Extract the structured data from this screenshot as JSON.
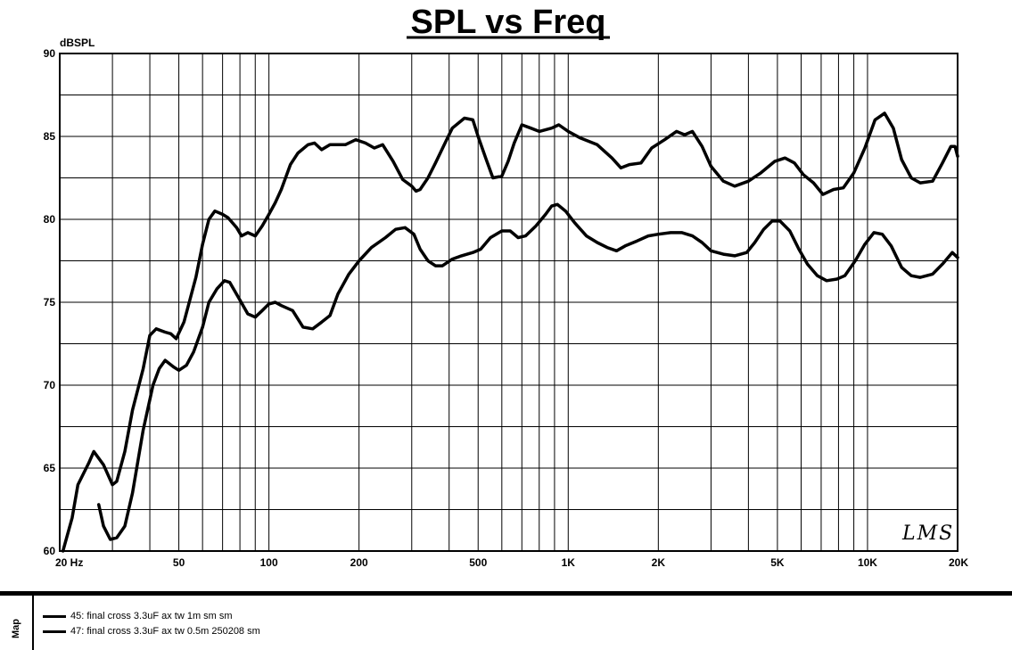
{
  "chart_data": {
    "type": "line",
    "title": "SPL vs Freq",
    "ylabel": "dBSPL",
    "xscale": "log",
    "xlim": [
      20,
      20000
    ],
    "ylim": [
      60,
      90
    ],
    "grid": true,
    "x_tick_labels": [
      {
        "x": 20,
        "label": "20  Hz"
      },
      {
        "x": 50,
        "label": "50"
      },
      {
        "x": 100,
        "label": "100"
      },
      {
        "x": 200,
        "label": "200"
      },
      {
        "x": 500,
        "label": "500"
      },
      {
        "x": 1000,
        "label": "1K"
      },
      {
        "x": 2000,
        "label": "2K"
      },
      {
        "x": 5000,
        "label": "5K"
      },
      {
        "x": 10000,
        "label": "10K"
      },
      {
        "x": 20000,
        "label": "20K"
      }
    ],
    "y_ticks": [
      60,
      65,
      70,
      75,
      80,
      85,
      90
    ],
    "watermark": "LMS",
    "series": [
      {
        "name": "45: final cross 3.3uF ax tw 1m sm sm",
        "color": "#000000",
        "points": [
          [
            20.5,
            60
          ],
          [
            22,
            62
          ],
          [
            23,
            64
          ],
          [
            25,
            65.3
          ],
          [
            26,
            66
          ],
          [
            28,
            65.2
          ],
          [
            30,
            64
          ],
          [
            31,
            64.2
          ],
          [
            33,
            66
          ],
          [
            35,
            68.5
          ],
          [
            38,
            71
          ],
          [
            40,
            73
          ],
          [
            42,
            73.4
          ],
          [
            45,
            73.2
          ],
          [
            47,
            73.1
          ],
          [
            49,
            72.8
          ],
          [
            52,
            73.8
          ],
          [
            57,
            76.5
          ],
          [
            60,
            78.5
          ],
          [
            63,
            80
          ],
          [
            66,
            80.5
          ],
          [
            70,
            80.3
          ],
          [
            73,
            80.1
          ],
          [
            78,
            79.5
          ],
          [
            81,
            79
          ],
          [
            85,
            79.2
          ],
          [
            90,
            79
          ],
          [
            95,
            79.6
          ],
          [
            100,
            80.3
          ],
          [
            105,
            81
          ],
          [
            110,
            81.8
          ],
          [
            118,
            83.3
          ],
          [
            125,
            84
          ],
          [
            135,
            84.5
          ],
          [
            142,
            84.6
          ],
          [
            150,
            84.2
          ],
          [
            160,
            84.5
          ],
          [
            180,
            84.5
          ],
          [
            195,
            84.8
          ],
          [
            210,
            84.6
          ],
          [
            225,
            84.3
          ],
          [
            240,
            84.5
          ],
          [
            260,
            83.5
          ],
          [
            280,
            82.4
          ],
          [
            300,
            82
          ],
          [
            310,
            81.7
          ],
          [
            320,
            81.8
          ],
          [
            340,
            82.5
          ],
          [
            360,
            83.4
          ],
          [
            390,
            84.7
          ],
          [
            410,
            85.5
          ],
          [
            450,
            86.1
          ],
          [
            480,
            86
          ],
          [
            500,
            85
          ],
          [
            530,
            83.7
          ],
          [
            560,
            82.5
          ],
          [
            600,
            82.6
          ],
          [
            630,
            83.5
          ],
          [
            660,
            84.6
          ],
          [
            700,
            85.7
          ],
          [
            750,
            85.5
          ],
          [
            800,
            85.3
          ],
          [
            880,
            85.5
          ],
          [
            930,
            85.7
          ],
          [
            1000,
            85.3
          ],
          [
            1100,
            84.9
          ],
          [
            1250,
            84.5
          ],
          [
            1400,
            83.7
          ],
          [
            1500,
            83.1
          ],
          [
            1600,
            83.3
          ],
          [
            1750,
            83.4
          ],
          [
            1900,
            84.3
          ],
          [
            2100,
            84.8
          ],
          [
            2300,
            85.3
          ],
          [
            2450,
            85.1
          ],
          [
            2600,
            85.3
          ],
          [
            2800,
            84.4
          ],
          [
            3000,
            83.2
          ],
          [
            3300,
            82.3
          ],
          [
            3600,
            82
          ],
          [
            4000,
            82.3
          ],
          [
            4400,
            82.8
          ],
          [
            4900,
            83.5
          ],
          [
            5300,
            83.7
          ],
          [
            5700,
            83.4
          ],
          [
            6100,
            82.7
          ],
          [
            6600,
            82.2
          ],
          [
            7100,
            81.5
          ],
          [
            7700,
            81.8
          ],
          [
            8300,
            81.9
          ],
          [
            9000,
            82.8
          ],
          [
            9800,
            84.3
          ],
          [
            10600,
            86
          ],
          [
            11400,
            86.4
          ],
          [
            12200,
            85.5
          ],
          [
            13000,
            83.6
          ],
          [
            14000,
            82.5
          ],
          [
            15000,
            82.2
          ],
          [
            16500,
            82.3
          ],
          [
            17800,
            83.4
          ],
          [
            19000,
            84.4
          ],
          [
            19600,
            84.4
          ],
          [
            20000,
            83.8
          ]
        ]
      },
      {
        "name": "47: final cross 3.3uF ax tw 0.5m 250208 sm",
        "color": "#000000",
        "points": [
          [
            27,
            62.8
          ],
          [
            28,
            61.5
          ],
          [
            29.5,
            60.7
          ],
          [
            31,
            60.8
          ],
          [
            33,
            61.5
          ],
          [
            35,
            63.5
          ],
          [
            38,
            67.3
          ],
          [
            41,
            70
          ],
          [
            43,
            71
          ],
          [
            45,
            71.5
          ],
          [
            48,
            71.1
          ],
          [
            50,
            70.9
          ],
          [
            53,
            71.2
          ],
          [
            56,
            72
          ],
          [
            60,
            73.5
          ],
          [
            63,
            75
          ],
          [
            67,
            75.8
          ],
          [
            71,
            76.3
          ],
          [
            74,
            76.2
          ],
          [
            79,
            75.3
          ],
          [
            85,
            74.3
          ],
          [
            90,
            74.1
          ],
          [
            95,
            74.5
          ],
          [
            100,
            74.9
          ],
          [
            105,
            75
          ],
          [
            110,
            74.8
          ],
          [
            120,
            74.5
          ],
          [
            130,
            73.5
          ],
          [
            140,
            73.4
          ],
          [
            150,
            73.8
          ],
          [
            160,
            74.2
          ],
          [
            170,
            75.5
          ],
          [
            185,
            76.7
          ],
          [
            200,
            77.5
          ],
          [
            220,
            78.3
          ],
          [
            245,
            78.9
          ],
          [
            265,
            79.4
          ],
          [
            285,
            79.5
          ],
          [
            305,
            79.1
          ],
          [
            320,
            78.2
          ],
          [
            340,
            77.5
          ],
          [
            360,
            77.2
          ],
          [
            380,
            77.2
          ],
          [
            410,
            77.6
          ],
          [
            440,
            77.8
          ],
          [
            480,
            78
          ],
          [
            510,
            78.2
          ],
          [
            550,
            78.9
          ],
          [
            600,
            79.3
          ],
          [
            640,
            79.3
          ],
          [
            680,
            78.9
          ],
          [
            720,
            79
          ],
          [
            780,
            79.6
          ],
          [
            840,
            80.3
          ],
          [
            880,
            80.8
          ],
          [
            920,
            80.9
          ],
          [
            980,
            80.5
          ],
          [
            1050,
            79.8
          ],
          [
            1150,
            79
          ],
          [
            1250,
            78.6
          ],
          [
            1350,
            78.3
          ],
          [
            1450,
            78.1
          ],
          [
            1550,
            78.4
          ],
          [
            1700,
            78.7
          ],
          [
            1850,
            79
          ],
          [
            2000,
            79.1
          ],
          [
            2200,
            79.2
          ],
          [
            2400,
            79.2
          ],
          [
            2600,
            79
          ],
          [
            2800,
            78.6
          ],
          [
            3000,
            78.1
          ],
          [
            3300,
            77.9
          ],
          [
            3600,
            77.8
          ],
          [
            3950,
            78
          ],
          [
            4200,
            78.6
          ],
          [
            4500,
            79.4
          ],
          [
            4800,
            79.9
          ],
          [
            5100,
            79.9
          ],
          [
            5500,
            79.3
          ],
          [
            5900,
            78.2
          ],
          [
            6300,
            77.3
          ],
          [
            6800,
            76.6
          ],
          [
            7300,
            76.3
          ],
          [
            7900,
            76.4
          ],
          [
            8400,
            76.6
          ],
          [
            9100,
            77.5
          ],
          [
            9800,
            78.5
          ],
          [
            10500,
            79.2
          ],
          [
            11200,
            79.1
          ],
          [
            12000,
            78.4
          ],
          [
            13000,
            77.1
          ],
          [
            14000,
            76.6
          ],
          [
            15000,
            76.5
          ],
          [
            16500,
            76.7
          ],
          [
            17800,
            77.3
          ],
          [
            19200,
            78
          ],
          [
            20000,
            77.7
          ]
        ]
      }
    ]
  },
  "legend": {
    "side_label": "Map",
    "entries": [
      "45: final cross 3.3uF ax tw 1m sm sm",
      "47: final cross 3.3uF ax tw 0.5m 250208 sm"
    ]
  }
}
